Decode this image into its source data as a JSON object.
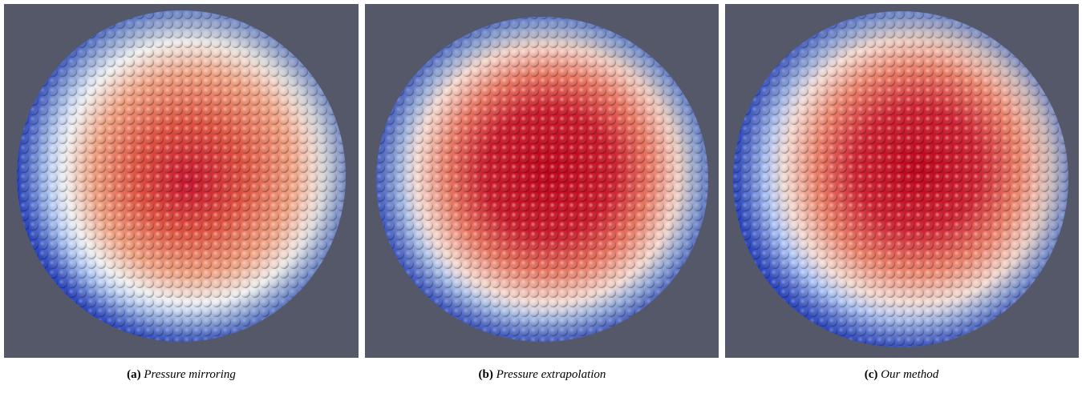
{
  "panels": [
    {
      "label": "(a)",
      "caption": "Pressure mirroring"
    },
    {
      "label": "(b)",
      "caption": "Pressure extrapolation"
    },
    {
      "label": "(c)",
      "caption": "Our method"
    }
  ]
}
